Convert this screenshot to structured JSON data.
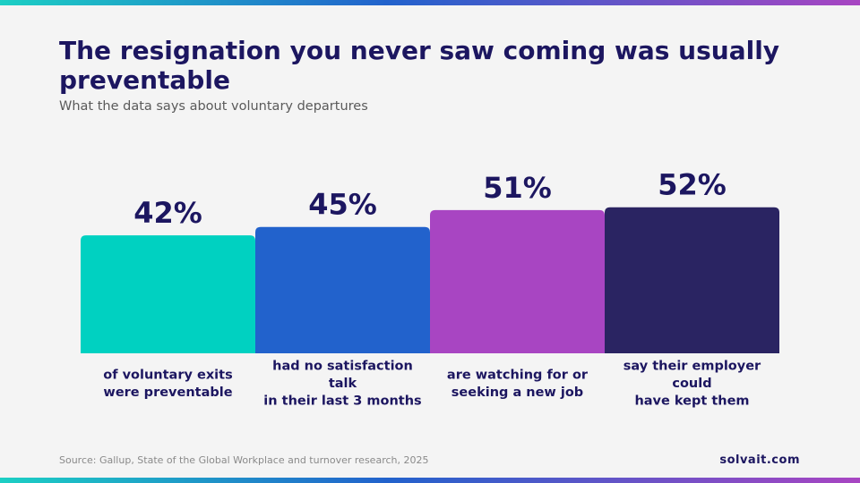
{
  "header": {
    "title": "The resignation you never saw coming was usually preventable",
    "subtitle": "What the data says about voluntary departures"
  },
  "chart_data": {
    "type": "bar",
    "title": "The resignation you never saw coming was usually preventable",
    "subtitle": "What the data says about voluntary departures",
    "categories": [
      "of voluntary exits were preventable",
      "had no satisfaction talk in their last 3 months",
      "are watching for or seeking a new job",
      "say their employer could have kept them"
    ],
    "category_lines": [
      [
        "of voluntary exits",
        "were preventable"
      ],
      [
        "had no satisfaction",
        "talk",
        "in their last 3 months"
      ],
      [
        "are watching for or",
        "seeking a new job"
      ],
      [
        "say their employer",
        "could",
        "have kept them"
      ]
    ],
    "values": [
      42,
      45,
      51,
      52
    ],
    "value_labels": [
      "42%",
      "45%",
      "51%",
      "52%"
    ],
    "unit": "%",
    "colors": [
      "#00d1c1",
      "#2262cc",
      "#a845c2",
      "#2a2462"
    ],
    "xlabel": "",
    "ylabel": "",
    "grid": false,
    "legend": "none"
  },
  "footer": {
    "source": "Source: Gallup, State of the Global Workplace and turnover research, 2025",
    "brand": "solvait.com"
  },
  "theme": {
    "background": "#f4f4f4",
    "title_color": "#1c1660",
    "accent_gradient": [
      "#1ccfc4",
      "#2262cc",
      "#a845c2"
    ]
  }
}
